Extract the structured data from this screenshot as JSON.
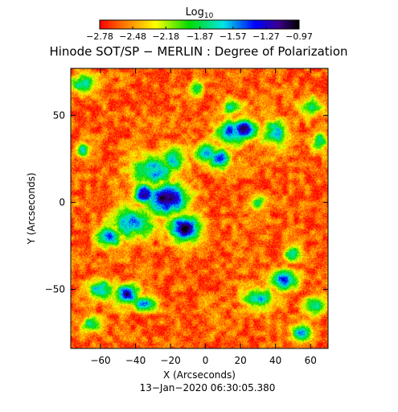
{
  "chart_data": {
    "type": "heatmap",
    "title": "Hinode SOT/SP − MERLIN : Degree of Polarization",
    "subtitle": "13−Jan−2020 06:30:05.380",
    "xlabel": "X (Arcseconds)",
    "ylabel": "Y (Arcseconds)",
    "xlim": [
      -77,
      70
    ],
    "ylim": [
      -84,
      77
    ],
    "x_ticks": [
      -60,
      -40,
      -20,
      0,
      20,
      40,
      60
    ],
    "y_ticks": [
      -50,
      0,
      50
    ],
    "colorbar": {
      "title_base": "Log",
      "title_sub": "10",
      "scale": "log10",
      "range": [
        -2.78,
        -0.97
      ],
      "tick_values": [
        -2.78,
        -2.48,
        -2.18,
        -1.87,
        -1.57,
        -1.27,
        -0.97
      ],
      "tick_labels": [
        "−2.78",
        "−2.48",
        "−2.18",
        "−1.87",
        "−1.57",
        "−1.27",
        "−0.97"
      ]
    },
    "background_level": -2.6,
    "features": [
      {
        "x": -22,
        "y": 2,
        "sx": 8,
        "sy": 6,
        "peak": -0.97
      },
      {
        "x": -12,
        "y": -15,
        "sx": 6,
        "sy": 5,
        "peak": -0.97
      },
      {
        "x": -35,
        "y": 5,
        "sx": 4,
        "sy": 4,
        "peak": -1.1
      },
      {
        "x": -30,
        "y": 18,
        "sx": 9,
        "sy": 6,
        "peak": -1.6
      },
      {
        "x": -42,
        "y": -12,
        "sx": 9,
        "sy": 6,
        "peak": -1.55
      },
      {
        "x": -55,
        "y": -20,
        "sx": 5,
        "sy": 4,
        "peak": -1.4
      },
      {
        "x": -18,
        "y": 24,
        "sx": 5,
        "sy": 5,
        "peak": -1.7
      },
      {
        "x": 15,
        "y": 40,
        "sx": 6,
        "sy": 5,
        "peak": -1.4
      },
      {
        "x": 22,
        "y": 42,
        "sx": 5,
        "sy": 4,
        "peak": -1.15
      },
      {
        "x": 8,
        "y": 25,
        "sx": 4,
        "sy": 4,
        "peak": -1.3
      },
      {
        "x": 0,
        "y": 28,
        "sx": 5,
        "sy": 4,
        "peak": -1.6
      },
      {
        "x": 15,
        "y": 55,
        "sx": 4,
        "sy": 3,
        "peak": -1.7
      },
      {
        "x": 40,
        "y": 40,
        "sx": 5,
        "sy": 5,
        "peak": -1.6
      },
      {
        "x": 45,
        "y": -45,
        "sx": 5,
        "sy": 4,
        "peak": -1.3
      },
      {
        "x": 30,
        "y": -55,
        "sx": 6,
        "sy": 4,
        "peak": -1.6
      },
      {
        "x": 50,
        "y": -30,
        "sx": 3,
        "sy": 3,
        "peak": -1.7
      },
      {
        "x": -60,
        "y": -50,
        "sx": 5,
        "sy": 4,
        "peak": -1.6
      },
      {
        "x": -45,
        "y": -53,
        "sx": 5,
        "sy": 4,
        "peak": -1.2
      },
      {
        "x": -35,
        "y": -58,
        "sx": 5,
        "sy": 3,
        "peak": -1.5
      },
      {
        "x": -70,
        "y": 30,
        "sx": 3,
        "sy": 3,
        "peak": -1.8
      },
      {
        "x": -70,
        "y": 68,
        "sx": 5,
        "sy": 4,
        "peak": -1.7
      },
      {
        "x": 60,
        "y": 55,
        "sx": 4,
        "sy": 4,
        "peak": -1.8
      },
      {
        "x": 62,
        "y": -60,
        "sx": 4,
        "sy": 4,
        "peak": -1.7
      },
      {
        "x": 55,
        "y": -75,
        "sx": 4,
        "sy": 3,
        "peak": -1.6
      },
      {
        "x": -5,
        "y": 65,
        "sx": 3,
        "sy": 3,
        "peak": -1.9
      },
      {
        "x": 30,
        "y": 0,
        "sx": 3,
        "sy": 3,
        "peak": -1.9
      },
      {
        "x": 65,
        "y": 35,
        "sx": 3,
        "sy": 4,
        "peak": -1.8
      },
      {
        "x": -65,
        "y": -70,
        "sx": 4,
        "sy": 3,
        "peak": -1.8
      }
    ]
  }
}
